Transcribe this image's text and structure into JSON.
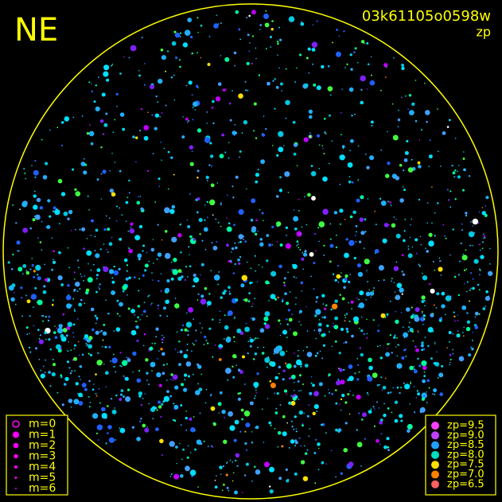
{
  "header": {
    "region": "NE",
    "image_id": "03k61105o0598w",
    "subtitle": "zp"
  },
  "magnitude_legend": {
    "items": [
      "m=0",
      "m=1",
      "m=2",
      "m=3",
      "m=4",
      "m=5",
      "m=6"
    ],
    "color": "#ff00ff"
  },
  "zp_legend": {
    "items": [
      {
        "label": "zp=9.5",
        "color": "#ff40ff"
      },
      {
        "label": "zp=9.0",
        "color": "#c040ff"
      },
      {
        "label": "zp=8.5",
        "color": "#20a0ff"
      },
      {
        "label": "zp=8.0",
        "color": "#00e0c0"
      },
      {
        "label": "zp=7.5",
        "color": "#ffe000"
      },
      {
        "label": "zp=7.0",
        "color": "#ff8000"
      },
      {
        "label": "zp=6.5",
        "color": "#ff6060"
      }
    ]
  }
}
